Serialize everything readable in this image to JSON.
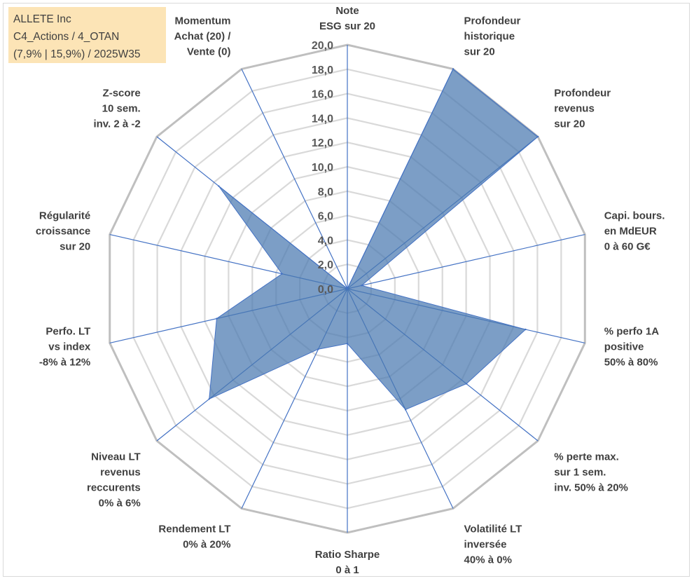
{
  "info": {
    "line1": "ALLETE Inc",
    "line2": "C4_Actions / 4_OTAN",
    "line3": "(7,9% | 15,9%) / 2025W35"
  },
  "chart_data": {
    "type": "radar",
    "title": "",
    "rmin": 0,
    "rmax": 20,
    "tick_step": 2,
    "tick_labels": [
      "0,0",
      "2,0",
      "4,0",
      "6,0",
      "8,0",
      "10,0",
      "12,0",
      "14,0",
      "16,0",
      "18,0",
      "20,0"
    ],
    "grid": true,
    "categories": [
      [
        "Note",
        "ESG sur 20"
      ],
      [
        "Profondeur",
        "historique",
        "sur 20"
      ],
      [
        "Profondeur",
        "revenus",
        "sur 20"
      ],
      [
        "Capi. bours.",
        "en MdEUR",
        "0 à 60 G€"
      ],
      [
        "% perfo 1A",
        "positive",
        "50% à 80%"
      ],
      [
        "% perte max.",
        "sur 1 sem.",
        "inv. 50% à 20%"
      ],
      [
        "Volatilité LT",
        "inversée",
        "40% à 0%"
      ],
      [
        "Ratio Sharpe",
        "0 à 1"
      ],
      [
        "Rendement LT",
        "0% à 20%"
      ],
      [
        "Niveau LT",
        "revenus",
        "reccurents",
        "0% à 6%"
      ],
      [
        "Perfo. LT",
        "vs index",
        "-8% à 12%"
      ],
      [
        "Régularité",
        "croissance",
        "sur 20"
      ],
      [
        "Z-score",
        "10 sem.",
        "inv. 2 à -2"
      ],
      [
        "Momentum",
        "Achat (20) /",
        "Vente (0)"
      ]
    ],
    "series": [
      {
        "values": [
          0,
          20,
          20,
          1.2,
          15,
          12.5,
          11,
          4.5,
          5.5,
          14.5,
          11,
          5.5,
          13.5,
          0
        ],
        "color": "#4a78b0"
      }
    ]
  }
}
